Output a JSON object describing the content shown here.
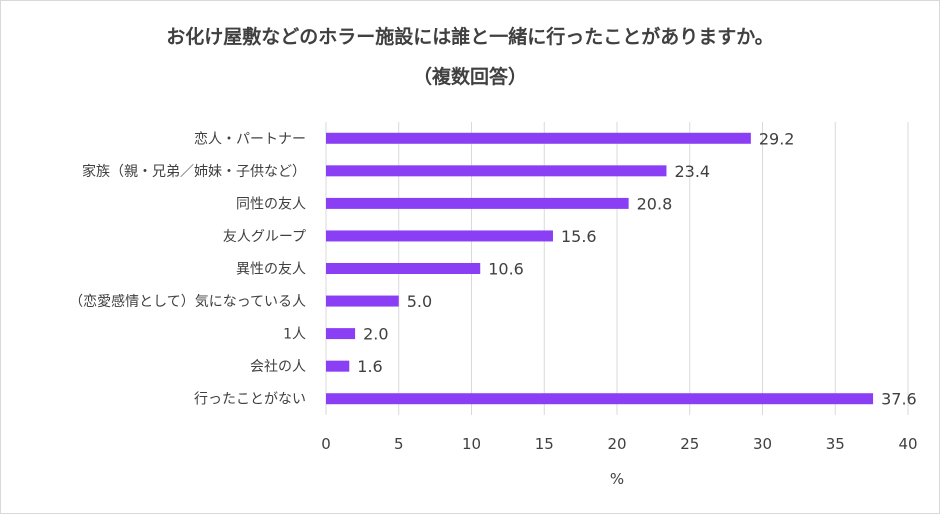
{
  "chart_data": {
    "type": "bar",
    "orientation": "horizontal",
    "title": "お化け屋敷などのホラー施設には誰と一緒に行ったことがありますか。",
    "subtitle": "（複数回答）",
    "categories": [
      "恋人・パートナー",
      "家族（親・兄弟／姉妹・子供など）",
      "同性の友人",
      "友人グループ",
      "異性の友人",
      "（恋愛感情として）気になっている人",
      "1人",
      "会社の人",
      "行ったことがない"
    ],
    "values": [
      29.2,
      23.4,
      20.8,
      15.6,
      10.6,
      5.0,
      2.0,
      1.6,
      37.6
    ],
    "data_labels": [
      "29.2",
      "23.4",
      "20.8",
      "15.6",
      "10.6",
      "5.0",
      "2.0",
      "1.6",
      "37.6"
    ],
    "xlabel": "%",
    "ylabel": "",
    "xlim": [
      0,
      40
    ],
    "xticks": [
      "0",
      "5",
      "10",
      "15",
      "20",
      "25",
      "30",
      "35",
      "40"
    ],
    "grid": "vertical",
    "legend": "none",
    "bar_color": "#8b3ff5"
  }
}
